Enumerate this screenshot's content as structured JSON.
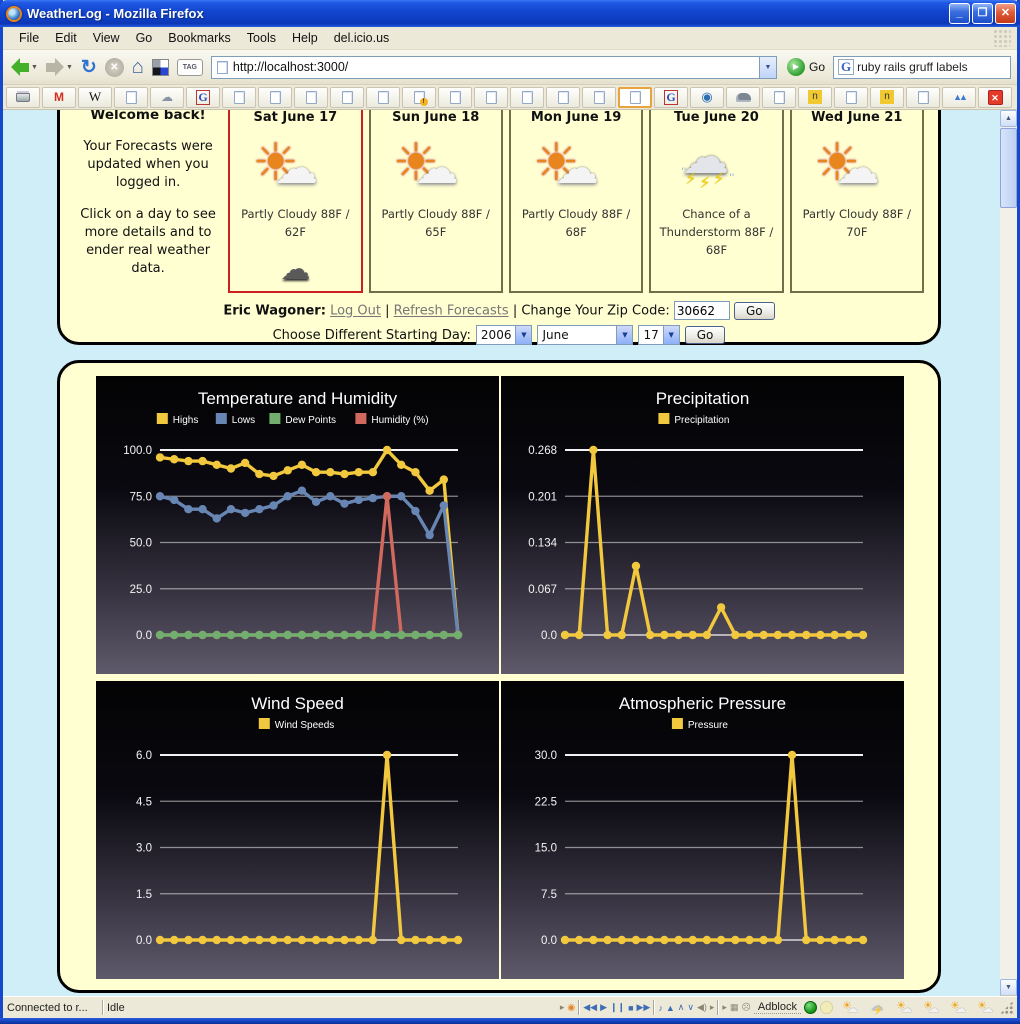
{
  "window": {
    "title": "WeatherLog - Mozilla Firefox"
  },
  "menu_items": [
    "File",
    "Edit",
    "View",
    "Go",
    "Bookmarks",
    "Tools",
    "Help",
    "del.icio.us"
  ],
  "navbar": {
    "url": "http://localhost:3000/",
    "go_label": "Go",
    "search_text": "ruby rails gruff labels"
  },
  "bookmarks": [
    "printer",
    "gmail",
    "wikipedia",
    "page",
    "hat",
    "google",
    "page",
    "page",
    "page",
    "page",
    "page",
    "page-alert",
    "page",
    "page",
    "page",
    "page",
    "page",
    "page-selected",
    "google",
    "drupal",
    "cloud",
    "page",
    "n-badge",
    "page",
    "n-badge",
    "page",
    "mountains",
    "close"
  ],
  "welcome": {
    "heading": "Welcome back!",
    "para1": "Your Forecasts were updated when you logged in.",
    "para2": "Click on a day to see more details and to ender real weather data."
  },
  "forecast_days": [
    {
      "date": "Sat June 17",
      "condition": "Partly Cloudy 88F / 62F",
      "icon": "partly-cloudy-icon",
      "selected": true,
      "night_icon": "night-clouds-icon"
    },
    {
      "date": "Sun June 18",
      "condition": "Partly Cloudy 88F / 65F",
      "icon": "partly-cloudy-icon",
      "selected": false
    },
    {
      "date": "Mon June 19",
      "condition": "Partly Cloudy 88F / 68F",
      "icon": "partly-cloudy-icon",
      "selected": false
    },
    {
      "date": "Tue June 20",
      "condition": "Chance of a Thunderstorm 88F / 68F",
      "icon": "thunderstorm-icon",
      "selected": false
    },
    {
      "date": "Wed June 21",
      "condition": "Partly Cloudy 88F / 70F",
      "icon": "partly-cloudy-icon",
      "selected": false
    }
  ],
  "account_row": {
    "name": "Eric Wagoner:",
    "logout_label": "Log Out",
    "separator": "|",
    "refresh_label": "Refresh Forecasts",
    "zip_label": "Change Your Zip Code:",
    "zip_value": "30662",
    "go_label": "Go"
  },
  "start_day_row": {
    "label": "Choose Different Starting Day:",
    "year": "2006",
    "month": "June",
    "day": "17",
    "go_label": "Go"
  },
  "status_bar": {
    "connection": "Connected to r...",
    "state": "Idle",
    "adblock_label": "Adblock",
    "weather_icons": [
      "partly",
      "storm",
      "partly",
      "partly",
      "partly",
      "partly"
    ]
  },
  "chart_data": [
    {
      "type": "line",
      "title": "Temperature and Humidity",
      "legend_position": "top-center",
      "ylim": [
        0,
        100
      ],
      "yticks": [
        "100.0",
        "75.0",
        "50.0",
        "25.0",
        "0.0"
      ],
      "x_labels": [],
      "series": [
        {
          "name": "Highs",
          "color": "#f2c83e",
          "values": [
            96,
            95,
            94,
            94,
            92,
            90,
            93,
            87,
            86,
            89,
            92,
            88,
            88,
            87,
            88,
            88,
            100,
            92,
            88,
            78,
            84,
            0
          ]
        },
        {
          "name": "Lows",
          "color": "#6886b4",
          "values": [
            75,
            73,
            68,
            68,
            63,
            68,
            66,
            68,
            70,
            75,
            78,
            72,
            75,
            71,
            73,
            74,
            75,
            75,
            67,
            54,
            70,
            0
          ]
        },
        {
          "name": "Dew Points",
          "color": "#72ae6e",
          "values": [
            0,
            0,
            0,
            0,
            0,
            0,
            0,
            0,
            0,
            0,
            0,
            0,
            0,
            0,
            0,
            0,
            0,
            0,
            0,
            0,
            0,
            0
          ]
        },
        {
          "name": "Humidity (%)",
          "color": "#d1695e",
          "values": [
            0,
            0,
            0,
            0,
            0,
            0,
            0,
            0,
            0,
            0,
            0,
            0,
            0,
            0,
            0,
            0,
            75,
            0,
            0,
            0,
            0,
            0
          ]
        }
      ]
    },
    {
      "type": "line",
      "title": "Precipitation",
      "legend_position": "top-center",
      "ylim": [
        0,
        0.268
      ],
      "yticks": [
        "0.268",
        "0.201",
        "0.134",
        "0.067",
        "0.0"
      ],
      "x_labels": [],
      "series": [
        {
          "name": "Precipitation",
          "color": "#f2c83e",
          "values": [
            0,
            0,
            0.268,
            0,
            0,
            0.1,
            0,
            0,
            0,
            0,
            0,
            0.04,
            0,
            0,
            0,
            0,
            0,
            0,
            0,
            0,
            0,
            0
          ]
        }
      ]
    },
    {
      "type": "line",
      "title": "Wind Speed",
      "legend_position": "top-center",
      "ylim": [
        0,
        6
      ],
      "yticks": [
        "6.0",
        "4.5",
        "3.0",
        "1.5",
        "0.0"
      ],
      "x_labels": [],
      "series": [
        {
          "name": "Wind Speeds",
          "color": "#f2c83e",
          "values": [
            0,
            0,
            0,
            0,
            0,
            0,
            0,
            0,
            0,
            0,
            0,
            0,
            0,
            0,
            0,
            0,
            6,
            0,
            0,
            0,
            0,
            0
          ]
        }
      ]
    },
    {
      "type": "line",
      "title": "Atmospheric Pressure",
      "legend_position": "top-center",
      "ylim": [
        0,
        30
      ],
      "yticks": [
        "30.0",
        "22.5",
        "15.0",
        "7.5",
        "0.0"
      ],
      "x_labels": [],
      "series": [
        {
          "name": "Pressure",
          "color": "#f2c83e",
          "values": [
            0,
            0,
            0,
            0,
            0,
            0,
            0,
            0,
            0,
            0,
            0,
            0,
            0,
            0,
            0,
            0,
            30,
            0,
            0,
            0,
            0,
            0
          ]
        }
      ]
    }
  ]
}
